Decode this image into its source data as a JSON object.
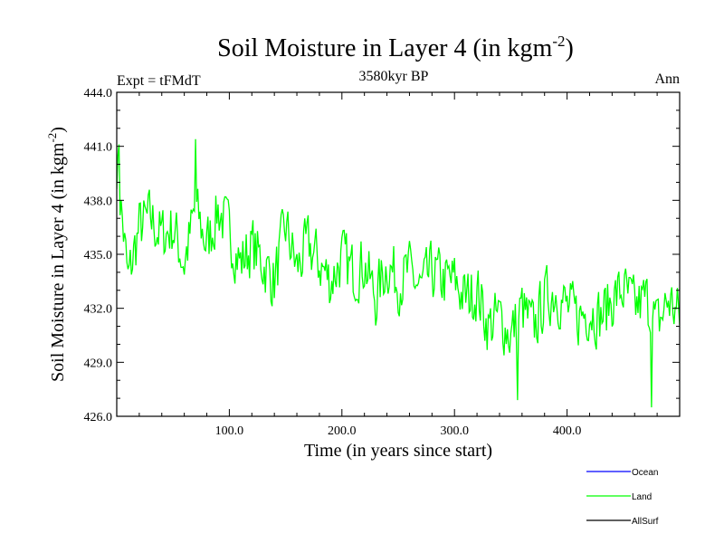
{
  "chart_data": {
    "type": "line",
    "title_main": "Soil Moisture in Layer 4 (in kgm",
    "title_sup": "-2",
    "title_close": ")",
    "subtitle": "3580kyr BP",
    "left_label": "Expt = tFMdT",
    "right_label": "Ann",
    "xlabel": "Time (in years since start)",
    "ylabel_main": "Soil Moisture in Layer 4 (in kgm",
    "ylabel_sup": "-2",
    "ylabel_close": ")",
    "xlim": [
      0,
      500
    ],
    "ylim": [
      426,
      444
    ],
    "x_ticks": [
      100,
      200,
      300,
      400
    ],
    "x_tick_labels": [
      "100.0",
      "200.0",
      "300.0",
      "400.0"
    ],
    "y_ticks": [
      426,
      429,
      432,
      435,
      438,
      441,
      444
    ],
    "y_tick_labels": [
      "426.0",
      "429.0",
      "432.0",
      "435.0",
      "438.0",
      "441.0",
      "444.0"
    ],
    "legend": [
      {
        "name": "Ocean",
        "color": "#0000ff"
      },
      {
        "name": "Land",
        "color": "#00ff00"
      },
      {
        "name": "AllSurf",
        "color": "#000000"
      }
    ],
    "series": [
      {
        "name": "Land",
        "color": "#00ff00",
        "x": [
          0,
          10,
          20,
          30,
          40,
          50,
          60,
          70,
          80,
          90,
          100,
          110,
          120,
          130,
          140,
          150,
          160,
          170,
          180,
          190,
          200,
          210,
          220,
          230,
          240,
          250,
          260,
          270,
          280,
          290,
          300,
          310,
          320,
          330,
          340,
          350,
          360,
          370,
          380,
          390,
          400,
          410,
          420,
          430,
          440,
          450,
          460,
          470,
          480,
          490,
          500
        ],
        "values": [
          440.2,
          433.5,
          436.5,
          437.0,
          436.0,
          436.5,
          434.5,
          437.5,
          435.5,
          437.5,
          436.2,
          434.5,
          435.5,
          434.5,
          433.5,
          436.5,
          434.2,
          435.5,
          434.5,
          433.5,
          434.8,
          434.0,
          434.5,
          432.5,
          434.5,
          433.5,
          434.0,
          433.0,
          434.0,
          433.5,
          433.5,
          432.5,
          433.0,
          431.0,
          431.5,
          430.5,
          432.0,
          430.8,
          432.5,
          433.0,
          432.0,
          431.5,
          432.0,
          431.5,
          432.5,
          433.0,
          432.0,
          432.5,
          431.0,
          432.5,
          431.5
        ]
      }
    ]
  }
}
